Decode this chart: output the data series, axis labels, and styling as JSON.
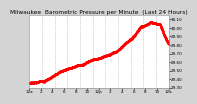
{
  "title": "Milwaukee  Barometric Pressure per Minute  (Last 24 Hours)",
  "line_color": "#ff0000",
  "bg_color": "#d4d4d4",
  "plot_bg_color": "#ffffff",
  "grid_color": "#aaaaaa",
  "y_min": 29.3,
  "y_max": 30.15,
  "y_ticks": [
    29.3,
    29.4,
    29.5,
    29.6,
    29.7,
    29.8,
    29.9,
    30.0,
    30.1
  ],
  "num_points": 1440,
  "num_vgrid": 11,
  "title_fontsize": 4.2,
  "tick_fontsize": 3.0,
  "linewidth": 0.5,
  "marker_size": 0.7,
  "breakpoints": [
    0,
    150,
    350,
    500,
    700,
    900,
    1050,
    1150,
    1250,
    1350,
    1440
  ],
  "values": [
    29.36,
    29.38,
    29.52,
    29.6,
    29.68,
    29.78,
    29.9,
    30.05,
    30.1,
    30.08,
    29.85
  ]
}
